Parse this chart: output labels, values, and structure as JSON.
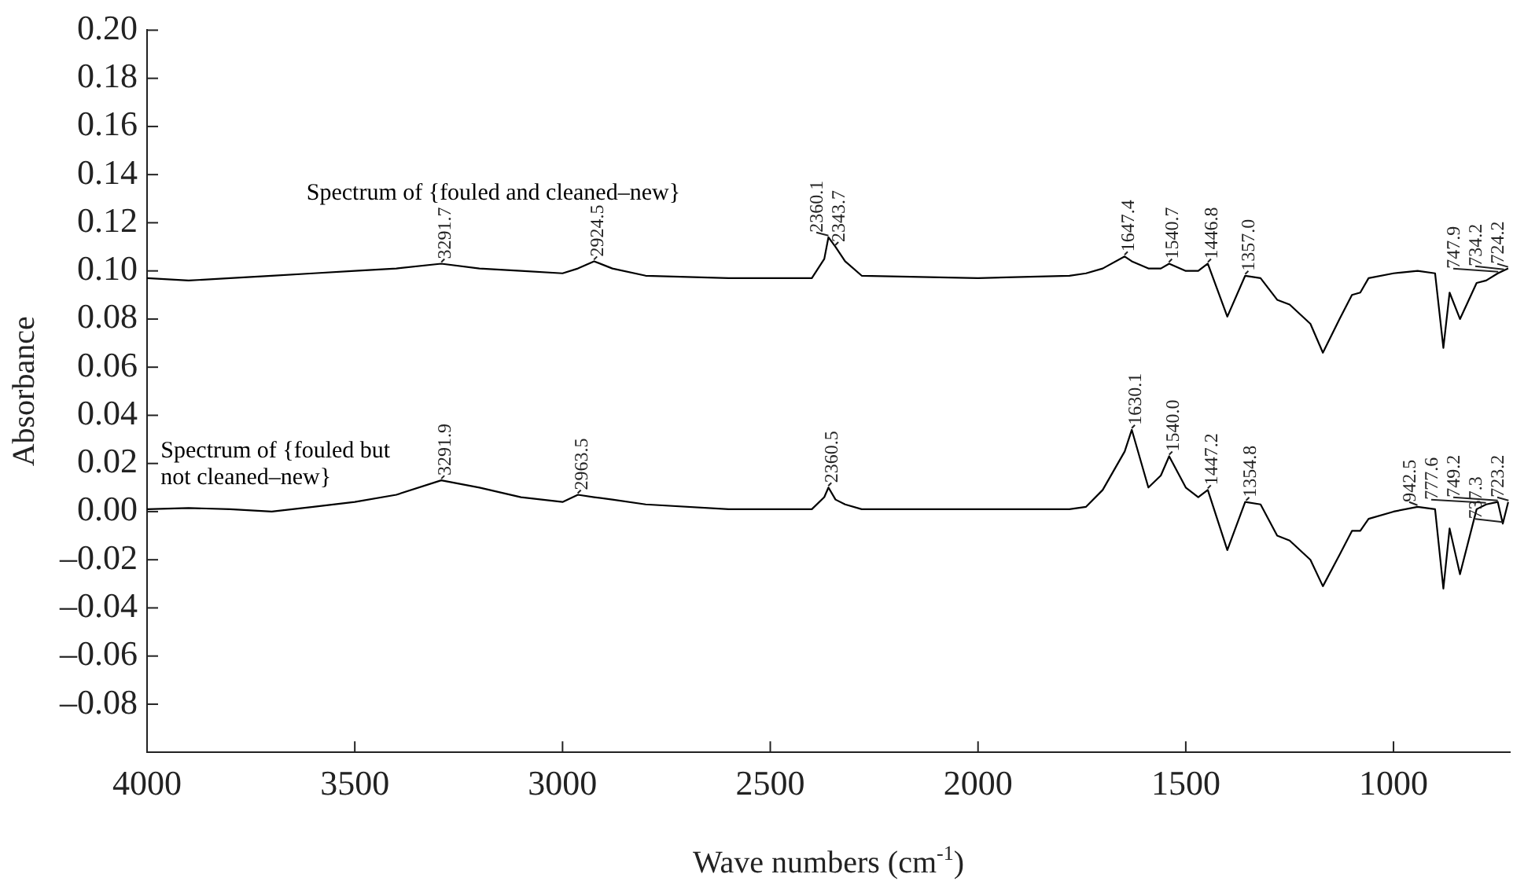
{
  "chart_data": {
    "type": "line",
    "xlabel": "Wave numbers (cm$^{-1}$)",
    "ylabel": "Absorbance",
    "xlim": [
      4000,
      720
    ],
    "xticks": [
      4000,
      3500,
      3000,
      2500,
      2000,
      1500,
      1000
    ],
    "ylim": [
      -0.1,
      0.2
    ],
    "yticks": [
      {
        "value": 0.2,
        "label": "0.20"
      },
      {
        "value": 0.18,
        "label": "0.18"
      },
      {
        "value": 0.16,
        "label": "0.16"
      },
      {
        "value": 0.14,
        "label": "0.14"
      },
      {
        "value": 0.12,
        "label": "0.12"
      },
      {
        "value": 0.1,
        "label": "0.10"
      },
      {
        "value": 0.08,
        "label": "0.08"
      },
      {
        "value": 0.06,
        "label": "0.06"
      },
      {
        "value": 0.04,
        "label": "0.04"
      },
      {
        "value": 0.02,
        "label": "0.02"
      },
      {
        "value": 0,
        "label": "0.00"
      },
      {
        "value": -0.02,
        "label": "–0.02"
      },
      {
        "value": -0.04,
        "label": "–0.04"
      },
      {
        "value": -0.06,
        "label": "–0.06"
      },
      {
        "value": -0.08,
        "label": "–0.08"
      }
    ],
    "x": [
      4000,
      3900,
      3800,
      3700,
      3600,
      3500,
      3400,
      3292,
      3200,
      3100,
      3000,
      2963,
      2924,
      2880,
      2800,
      2600,
      2400,
      2370,
      2360,
      2343,
      2320,
      2280,
      2000,
      1780,
      1740,
      1700,
      1647,
      1630,
      1590,
      1560,
      1540,
      1500,
      1470,
      1447,
      1400,
      1357,
      1320,
      1280,
      1250,
      1200,
      1170,
      1130,
      1100,
      1080,
      1060,
      1000,
      942,
      900,
      880,
      865,
      840,
      800,
      777,
      749,
      737,
      724
    ],
    "series": [
      {
        "name": "Spectrum of {fouled and cleaned–new}",
        "color": "#000000",
        "values": [
          0.097,
          0.096,
          0.097,
          0.098,
          0.099,
          0.1,
          0.101,
          0.103,
          0.101,
          0.1,
          0.099,
          0.101,
          0.104,
          0.101,
          0.098,
          0.097,
          0.097,
          0.105,
          0.114,
          0.11,
          0.104,
          0.098,
          0.097,
          0.098,
          0.099,
          0.101,
          0.106,
          0.104,
          0.101,
          0.101,
          0.103,
          0.1,
          0.1,
          0.103,
          0.081,
          0.098,
          0.097,
          0.088,
          0.086,
          0.078,
          0.066,
          0.08,
          0.09,
          0.091,
          0.097,
          0.099,
          0.1,
          0.099,
          0.068,
          0.091,
          0.08,
          0.095,
          0.096,
          0.099,
          0.1,
          0.101
        ]
      },
      {
        "name": "Spectrum of {fouled but not cleaned–new}",
        "color": "#000000",
        "values": [
          0.001,
          0.0015,
          0.001,
          0,
          0.002,
          0.004,
          0.007,
          0.013,
          0.01,
          0.006,
          0.004,
          0.007,
          0.006,
          0.005,
          0.003,
          0.001,
          0.001,
          0.006,
          0.01,
          0.005,
          0.003,
          0.001,
          0.001,
          0.001,
          0.002,
          0.009,
          0.025,
          0.034,
          0.01,
          0.015,
          0.023,
          0.01,
          0.006,
          0.009,
          -0.016,
          0.004,
          0.003,
          -0.01,
          -0.012,
          -0.02,
          -0.031,
          -0.018,
          -0.008,
          -0.008,
          -0.003,
          0,
          0.002,
          0.001,
          -0.032,
          -0.007,
          -0.026,
          0.001,
          0.003,
          0.004,
          -0.005,
          0.004
        ]
      }
    ],
    "annotations": [
      {
        "text": "3291.7",
        "x": 3291.7,
        "y": 0.103
      },
      {
        "text": "2924.5",
        "x": 2924.5,
        "y": 0.104
      },
      {
        "text": "2360.1",
        "x": 2360.1,
        "y": 0.114
      },
      {
        "text": "2343.7",
        "x": 2343.7,
        "y": 0.11
      },
      {
        "text": "1647.4",
        "x": 1647.4,
        "y": 0.106
      },
      {
        "text": "1540.7",
        "x": 1540.7,
        "y": 0.103
      },
      {
        "text": "1446.8",
        "x": 1446.8,
        "y": 0.103
      },
      {
        "text": "1357.0",
        "x": 1357,
        "y": 0.098
      },
      {
        "text": "747.9",
        "x": 747.9,
        "y": 0.099
      },
      {
        "text": "734.2",
        "x": 734.2,
        "y": 0.1
      },
      {
        "text": "724.2",
        "x": 724.2,
        "y": 0.101
      },
      {
        "text": "3291.9",
        "x": 3291.9,
        "y": 0.013
      },
      {
        "text": "2963.5",
        "x": 2963.5,
        "y": 0.007
      },
      {
        "text": "2360.5",
        "x": 2360.5,
        "y": 0.01
      },
      {
        "text": "1630.1",
        "x": 1630.1,
        "y": 0.034
      },
      {
        "text": "1540.0",
        "x": 1540,
        "y": 0.023
      },
      {
        "text": "1447.2",
        "x": 1447.2,
        "y": 0.009
      },
      {
        "text": "1354.8",
        "x": 1354.8,
        "y": 0.004
      },
      {
        "text": "942.5",
        "x": 942.5,
        "y": 0.002
      },
      {
        "text": "777.6",
        "x": 777.6,
        "y": 0.003
      },
      {
        "text": "749.2",
        "x": 749.2,
        "y": 0.004
      },
      {
        "text": "737.3",
        "x": 737.3,
        "y": -0.005
      },
      {
        "text": "723.2",
        "x": 723.2,
        "y": 0.004
      }
    ]
  }
}
